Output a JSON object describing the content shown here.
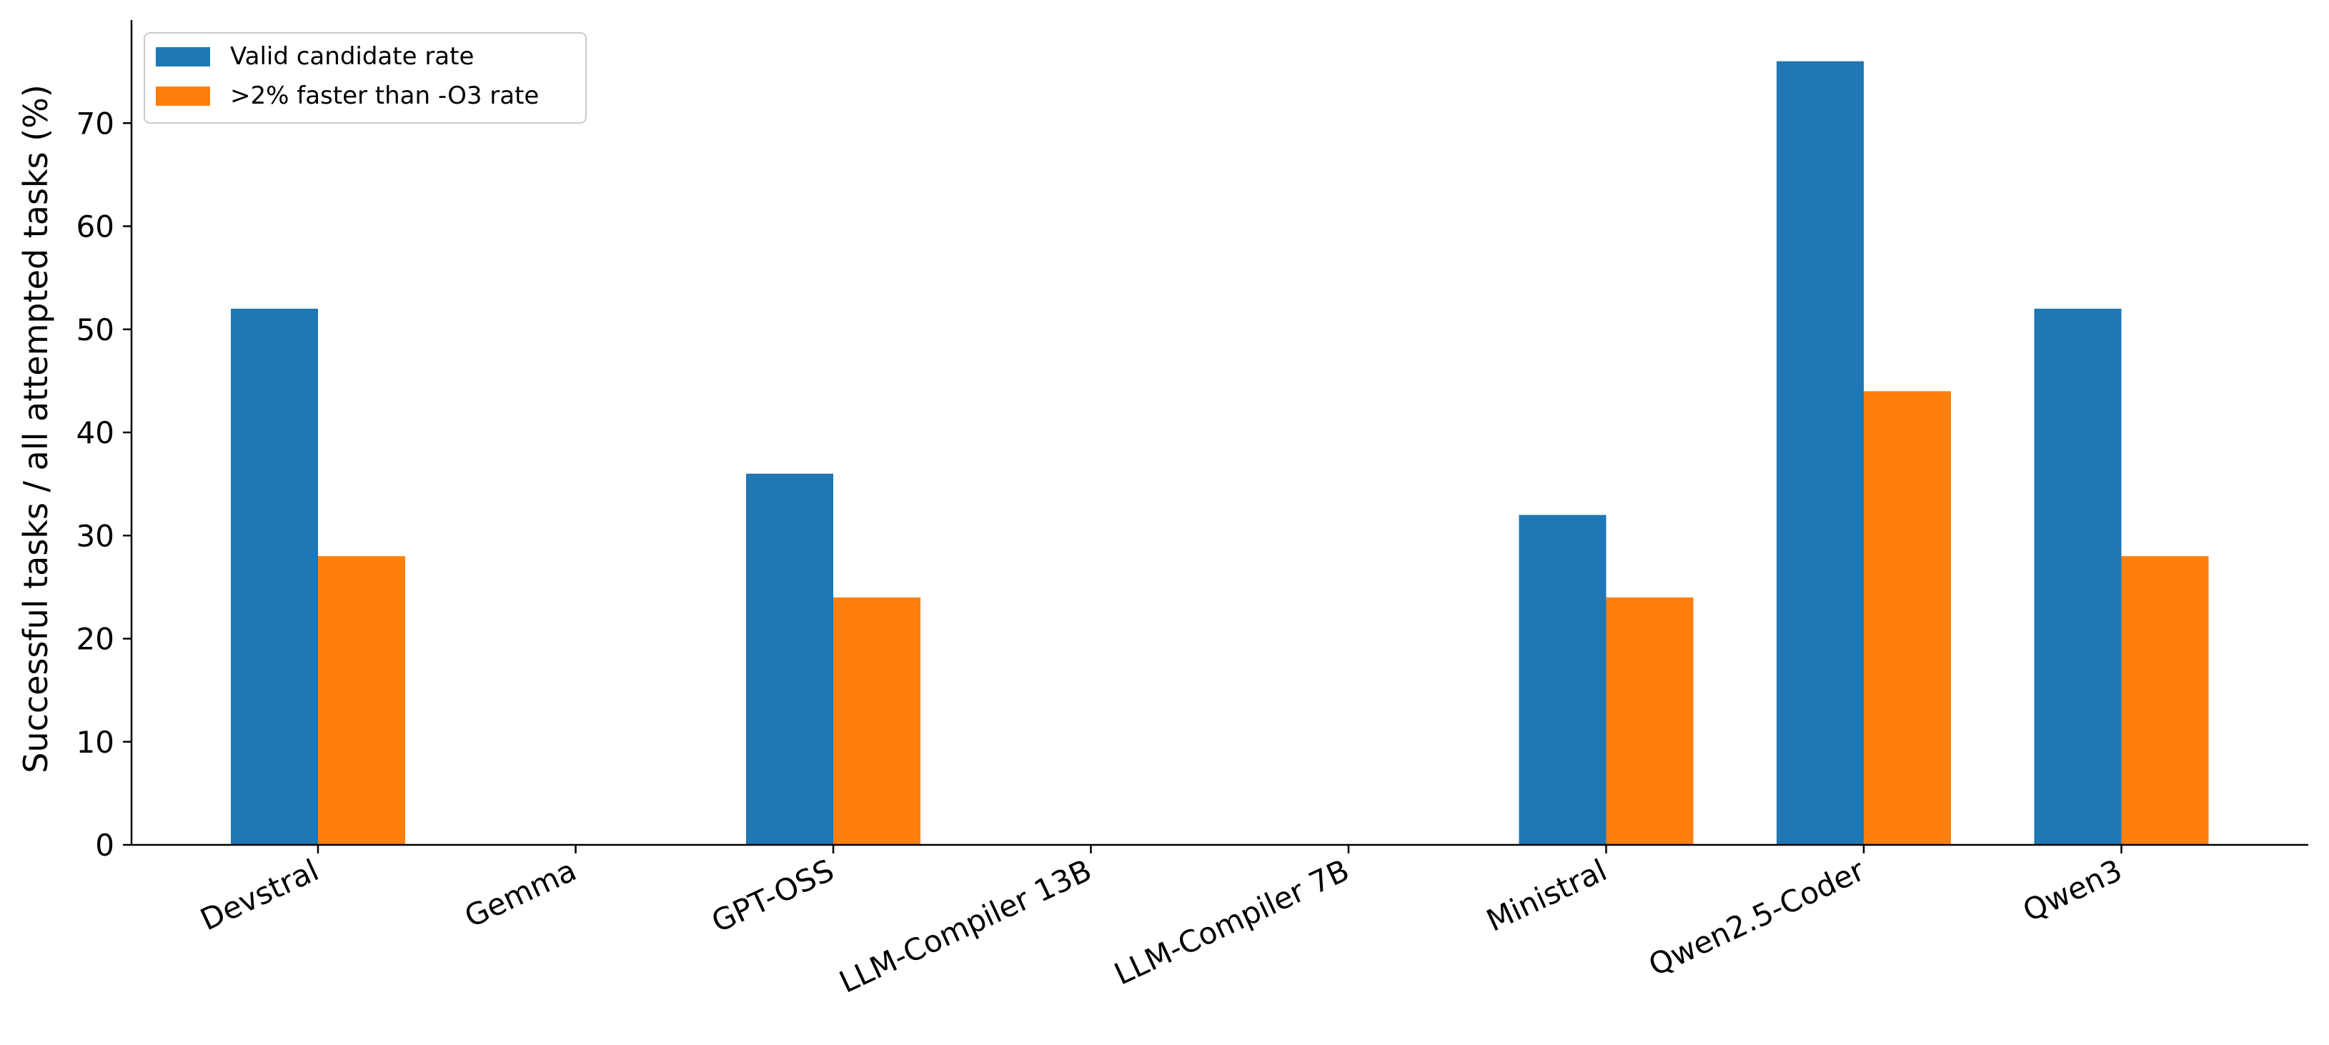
{
  "chart_data": {
    "type": "bar",
    "title": "",
    "xlabel": "",
    "ylabel": "Successful tasks / all attempted tasks (%)",
    "categories": [
      "Devstral",
      "Gemma",
      "GPT-OSS",
      "LLM-Compiler 13B",
      "LLM-Compiler 7B",
      "Ministral",
      "Qwen2.5-Coder",
      "Qwen3"
    ],
    "series": [
      {
        "name": "Valid candidate rate",
        "color": "#1f77b4",
        "values": [
          52,
          0,
          36,
          0,
          0,
          32,
          76,
          52
        ]
      },
      {
        "name": ">2% faster than -O3 rate",
        "color": "#ff7f0e",
        "values": [
          28,
          0,
          24,
          0,
          0,
          24,
          44,
          28
        ]
      }
    ],
    "yticks": [
      0,
      10,
      20,
      30,
      40,
      50,
      60,
      70
    ],
    "ylim": [
      0,
      80
    ],
    "grid": false,
    "legend_position": "top-left"
  }
}
